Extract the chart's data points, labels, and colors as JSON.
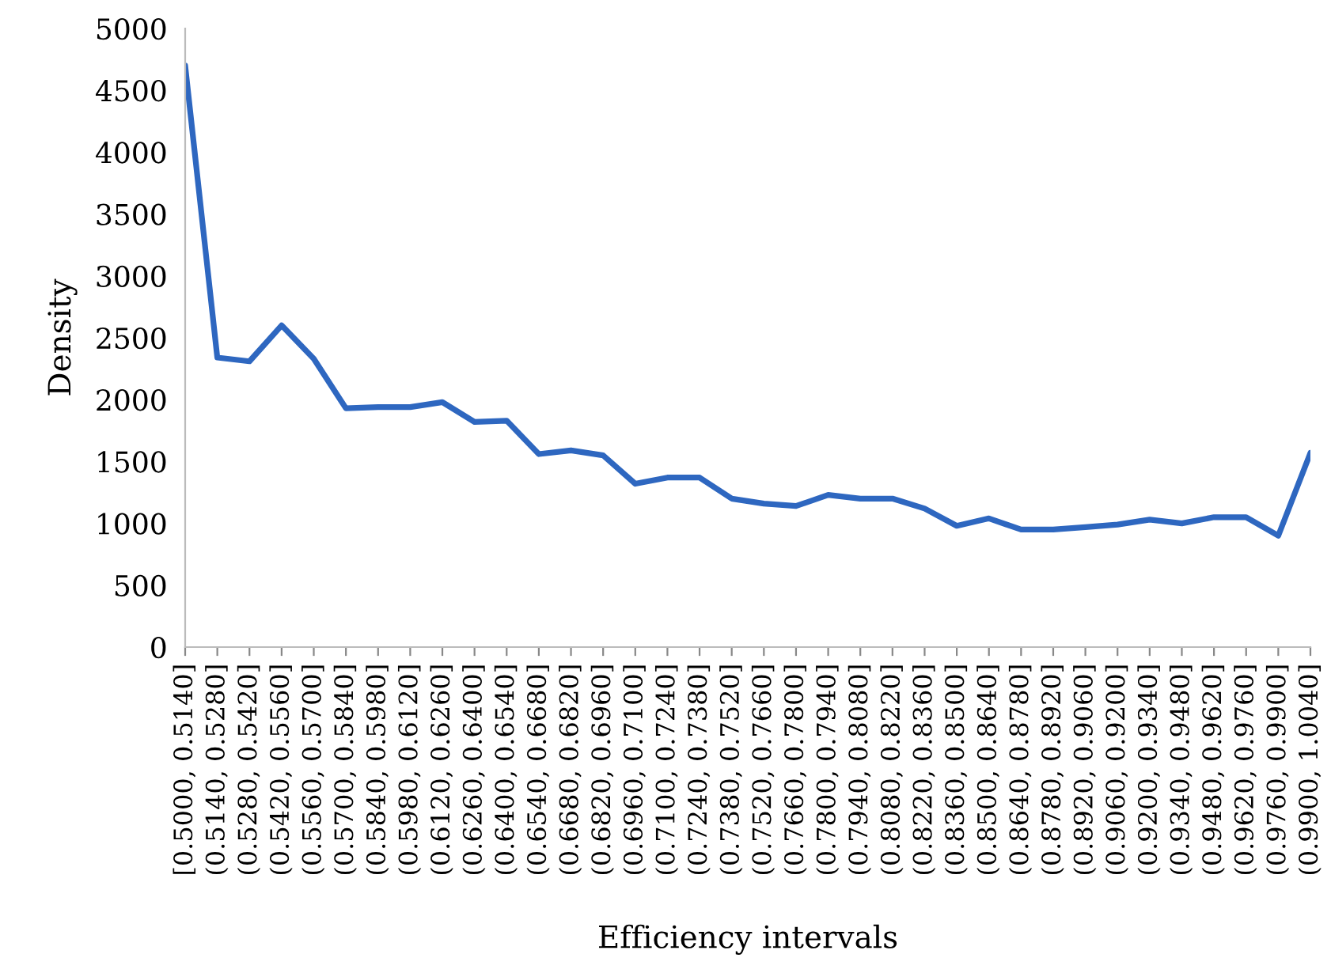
{
  "chart_data": {
    "type": "line",
    "xlabel": "Efficiency intervals",
    "ylabel": "Density",
    "categories": [
      "[0.5000, 0.5140]",
      "(0.5140, 0.5280]",
      "(0.5280, 0.5420]",
      "(0.5420, 0.5560]",
      "(0.5560, 0.5700]",
      "(0.5700, 0.5840]",
      "(0.5840, 0.5980]",
      "(0.5980, 0.6120]",
      "(0.6120, 0.6260]",
      "(0.6260, 0.6400]",
      "(0.6400, 0.6540]",
      "(0.6540, 0.6680]",
      "(0.6680, 0.6820]",
      "(0.6820, 0.6960]",
      "(0.6960, 0.7100]",
      "(0.7100, 0.7240]",
      "(0.7240, 0.7380]",
      "(0.7380, 0.7520]",
      "(0.7520, 0.7660]",
      "(0.7660, 0.7800]",
      "(0.7800, 0.7940]",
      "(0.7940, 0.8080]",
      "(0.8080, 0.8220]",
      "(0.8220, 0.8360]",
      "(0.8360, 0.8500]",
      "(0.8500, 0.8640]",
      "(0.8640, 0.8780]",
      "(0.8780, 0.8920]",
      "(0.8920, 0.9060]",
      "(0.9060, 0.9200]",
      "(0.9200, 0.9340]",
      "(0.9340, 0.9480]",
      "(0.9480, 0.9620]",
      "(0.9620, 0.9760]",
      "(0.9760, 0.9900]",
      "(0.9900, 1.0040]"
    ],
    "series": [
      {
        "color": "#2e67c0",
        "values": [
          4700,
          2340,
          2310,
          2600,
          2330,
          1930,
          1940,
          1940,
          1980,
          1820,
          1830,
          1560,
          1590,
          1550,
          1320,
          1370,
          1370,
          1200,
          1160,
          1140,
          1230,
          1200,
          1200,
          1120,
          980,
          1040,
          950,
          950,
          970,
          990,
          1030,
          1000,
          1050,
          1050,
          900,
          1570
        ]
      }
    ],
    "ylim": [
      0,
      5000
    ],
    "yticks": [
      0,
      500,
      1000,
      1500,
      2000,
      2500,
      3000,
      3500,
      4000,
      4500,
      5000
    ],
    "grid": false,
    "legend": false,
    "marker": "none",
    "line_style": "solid"
  }
}
